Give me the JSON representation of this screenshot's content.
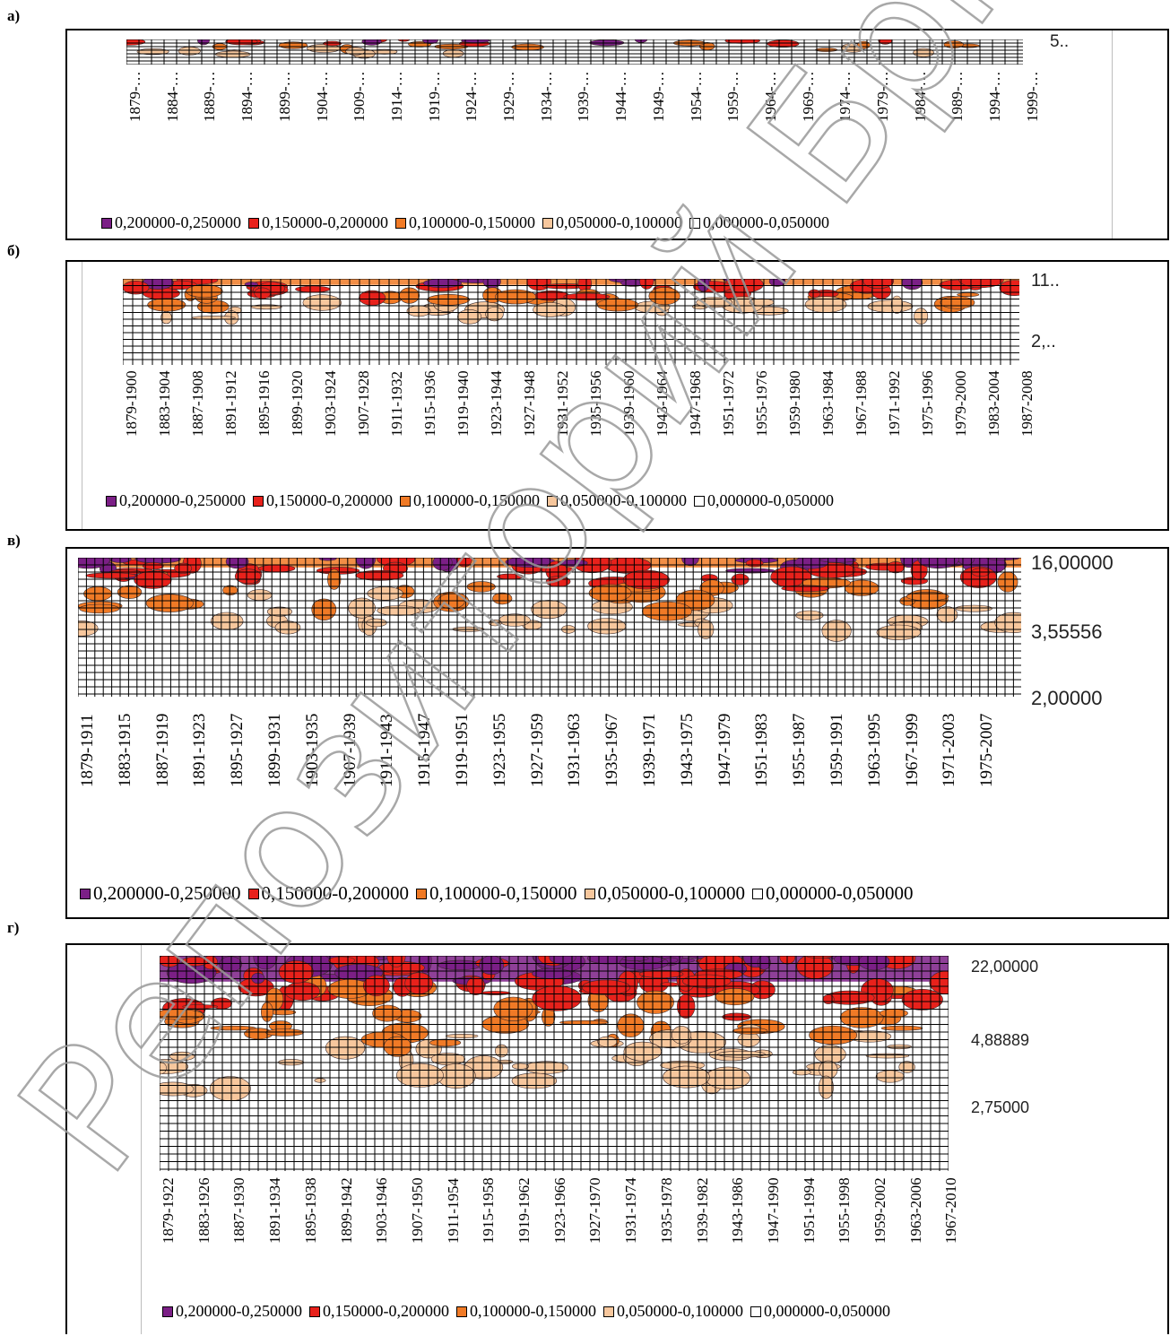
{
  "legend_colors": [
    "#7b1f86",
    "#e8211b",
    "#f07a26",
    "#f7c79d",
    "#ffffff"
  ],
  "chart_data": [
    {
      "panel_label": "а)",
      "type": "heatmap",
      "x_tick_labels": [
        "1879-…",
        "1884-…",
        "1889-…",
        "1894-…",
        "1899-…",
        "1904-…",
        "1909-…",
        "1914-…",
        "1919-…",
        "1924-…",
        "1929-…",
        "1934-…",
        "1939-…",
        "1944-…",
        "1949-…",
        "1954-…",
        "1959-…",
        "1964-…",
        "1969-…",
        "1974-…",
        "1979-…",
        "1984-…",
        "1989-…",
        "1994-…",
        "1999-…"
      ],
      "y_tick_labels": [
        "5.."
      ],
      "legend": [
        "0,200000-0,250000",
        "0,150000-0,200000",
        "0,100000-0,150000",
        "0,050000-0,100000",
        "0,000000-0,050000"
      ]
    },
    {
      "panel_label": "б)",
      "type": "heatmap",
      "x_tick_labels": [
        "1879-1900",
        "1883-1904",
        "1887-1908",
        "1891-1912",
        "1895-1916",
        "1899-1920",
        "1903-1924",
        "1907-1928",
        "1911-1932",
        "1915-1936",
        "1919-1940",
        "1923-1944",
        "1927-1948",
        "1931-1952",
        "1935-1956",
        "1939-1960",
        "1943-1964",
        "1947-1968",
        "1951-1972",
        "1955-1976",
        "1959-1980",
        "1963-1984",
        "1967-1988",
        "1971-1992",
        "1975-1996",
        "1979-2000",
        "1983-2004",
        "1987-2008"
      ],
      "y_tick_labels": [
        "11..",
        "2,.."
      ],
      "legend": [
        "0,200000-0,250000",
        "0,150000-0,200000",
        "0,100000-0,150000",
        "0,050000-0,100000",
        "0,000000-0,050000"
      ]
    },
    {
      "panel_label": "в)",
      "type": "heatmap",
      "x_tick_labels": [
        "1879-1911",
        "1883-1915",
        "1887-1919",
        "1891-1923",
        "1895-1927",
        "1899-1931",
        "1903-1935",
        "1907-1939",
        "1911-1943",
        "1915-1947",
        "1919-1951",
        "1923-1955",
        "1927-1959",
        "1931-1963",
        "1935-1967",
        "1939-1971",
        "1943-1975",
        "1947-1979",
        "1951-1983",
        "1955-1987",
        "1959-1991",
        "1963-1995",
        "1967-1999",
        "1971-2003",
        "1975-2007"
      ],
      "y_tick_labels": [
        "16,00000",
        "3,55556",
        "2,00000"
      ],
      "legend": [
        "0,200000-0,250000",
        "0,150000-0,200000",
        "0,100000-0,150000",
        "0,050000-0,100000",
        "0,000000-0,050000"
      ]
    },
    {
      "panel_label": "г)",
      "type": "heatmap",
      "x_tick_labels": [
        "1879-1922",
        "1883-1926",
        "1887-1930",
        "1891-1934",
        "1895-1938",
        "1899-1942",
        "1903-1946",
        "1907-1950",
        "1911-1954",
        "1915-1958",
        "1919-1962",
        "1923-1966",
        "1927-1970",
        "1931-1974",
        "1935-1978",
        "1939-1982",
        "1943-1986",
        "1947-1990",
        "1951-1994",
        "1955-1998",
        "1959-2002",
        "1963-2006",
        "1967-2010"
      ],
      "y_tick_labels": [
        "22,00000",
        "4,88889",
        "2,75000"
      ],
      "legend": [
        "0,200000-0,250000",
        "0,150000-0,200000",
        "0,100000-0,150000",
        "0,050000-0,100000",
        "0,000000-0,050000"
      ]
    }
  ],
  "watermark": "Репозиторий БрГТУ"
}
